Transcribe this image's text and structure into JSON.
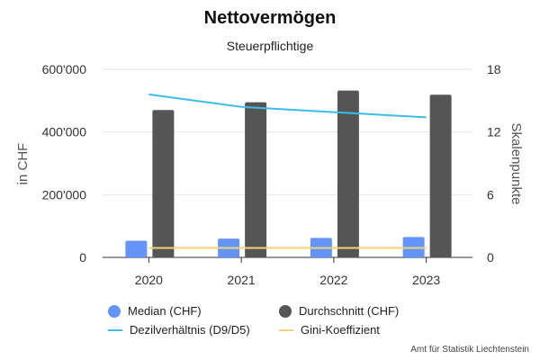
{
  "chart_data": {
    "type": "bar",
    "title": "Nettovermögen",
    "subtitle": "Steuerpflichtige",
    "categories": [
      "2020",
      "2021",
      "2022",
      "2023"
    ],
    "ylabel": "in CHF",
    "y2label": "Skalenpunkte",
    "ylim": [
      0,
      600000
    ],
    "y2lim": [
      0,
      18
    ],
    "yticks": [
      "0",
      "200'000",
      "400'000",
      "600'000"
    ],
    "y2ticks": [
      "0",
      "6",
      "12",
      "18"
    ],
    "grid": true,
    "legend_position": "bottom",
    "series": [
      {
        "name": "Median (CHF)",
        "type": "bar",
        "axis": "left",
        "color": "#6395f9",
        "values": [
          53000,
          60000,
          62000,
          65000
        ]
      },
      {
        "name": "Durchschnitt (CHF)",
        "type": "bar",
        "axis": "left",
        "color": "#555555",
        "values": [
          470000,
          495000,
          532000,
          519000
        ]
      },
      {
        "name": "Dezilverhältnis (D9/D5)",
        "type": "line",
        "axis": "right",
        "color": "#3bbde8",
        "values": [
          15.6,
          14.4,
          13.9,
          13.4
        ]
      },
      {
        "name": "Gini-Koeffizient",
        "type": "line",
        "axis": "right",
        "color": "#f3d27a",
        "values": [
          0.9,
          0.9,
          0.9,
          0.9
        ]
      }
    ]
  },
  "legend": {
    "median": "Median (CHF)",
    "average": "Durchschnitt (CHF)",
    "decile": "Dezilverhältnis (D9/D5)",
    "gini": "Gini-Koeffizient"
  },
  "credit": "Amt für Statistik Liechtenstein"
}
